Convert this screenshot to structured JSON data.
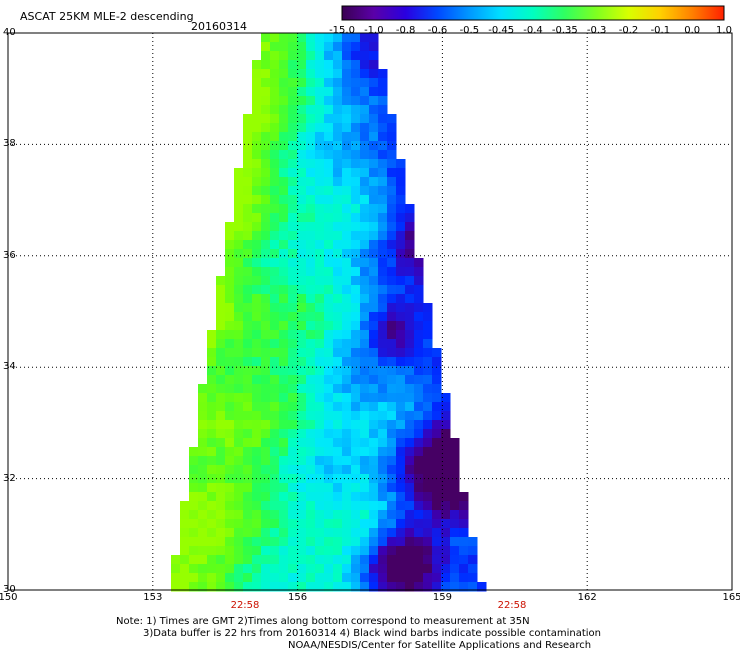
{
  "header": {
    "title": "ASCAT 25KM MLE-2 descending",
    "date": "20160314"
  },
  "colorbar": {
    "labels": [
      "-15.0",
      "-1.0",
      "-0.8",
      "-0.6",
      "-0.5",
      "-0.45",
      "-0.4",
      "-0.35",
      "-0.3",
      "-0.2",
      "-0.1",
      "0.0",
      "1.0"
    ],
    "colors": [
      "#3a0052",
      "#5a00a8",
      "#2a00e0",
      "#0048ff",
      "#0098ff",
      "#00e0ff",
      "#00ffc0",
      "#30ff60",
      "#80ff20",
      "#d8ff00",
      "#ffd000",
      "#ff8000",
      "#ff2000"
    ]
  },
  "axes": {
    "lat_ticks": [
      "40",
      "38",
      "36",
      "34",
      "32",
      "30"
    ],
    "lon_ticks": [
      "150",
      "153",
      "156",
      "159",
      "162",
      "165"
    ]
  },
  "times": [
    "22:58",
    "22:58"
  ],
  "notes": {
    "line1": "Note: 1) Times are GMT 2)Times along bottom correspond to measurement at 35N",
    "line2": "3)Data buffer is 22 hrs from 20160314 4) Black wind barbs indicate possible contamination",
    "line3": "NOAA/NESDIS/Center for Satellite Applications and Research"
  }
}
